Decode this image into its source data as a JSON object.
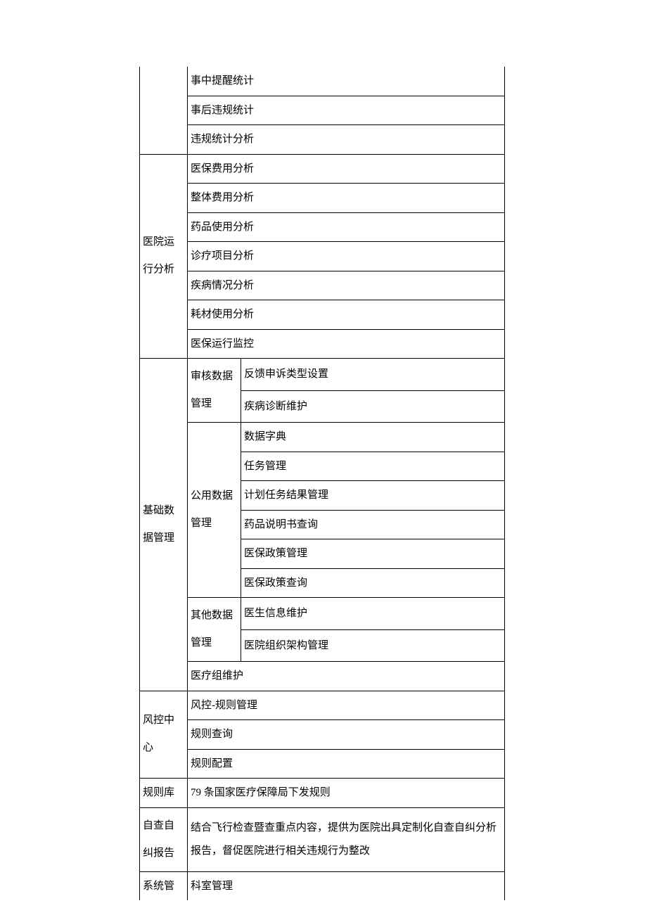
{
  "section0": {
    "rows": [
      "事中提醒统计",
      "事后违规统计",
      "违规统计分析"
    ]
  },
  "section1": {
    "label": "医院运行分析",
    "rows": [
      "医保费用分析",
      "整体费用分析",
      "药品使用分析",
      "诊疗项目分析",
      "疾病情况分析",
      "耗材使用分析",
      "医保运行监控"
    ]
  },
  "section2": {
    "label": "基础数据管理",
    "groups": [
      {
        "label": "审核数据管理",
        "items": [
          "反馈申诉类型设置",
          "疾病诊断维护"
        ]
      },
      {
        "label": "公用数据管理",
        "items": [
          "数据字典",
          "任务管理",
          "计划任务结果管理",
          "药品说明书查询",
          "医保政策管理",
          "医保政策查询"
        ]
      },
      {
        "label": "其他数据管理",
        "items": [
          "医生信息维护",
          "医院组织架构管理"
        ]
      }
    ],
    "last": "医疗组维护"
  },
  "section3": {
    "label": "风控中心",
    "rows": [
      "风控-规则管理",
      "规则查询",
      "规则配置"
    ]
  },
  "section4": {
    "label": "规则库",
    "value": "79 条国家医疗保障局下发规则"
  },
  "section5": {
    "label": "自查自纠报告",
    "value": "结合飞行检查暨查重点内容，提供为医院出具定制化自查自纠分析报告，督促医院进行相关违规行为整改"
  },
  "section6": {
    "label": "系统管",
    "value": "科室管理"
  }
}
